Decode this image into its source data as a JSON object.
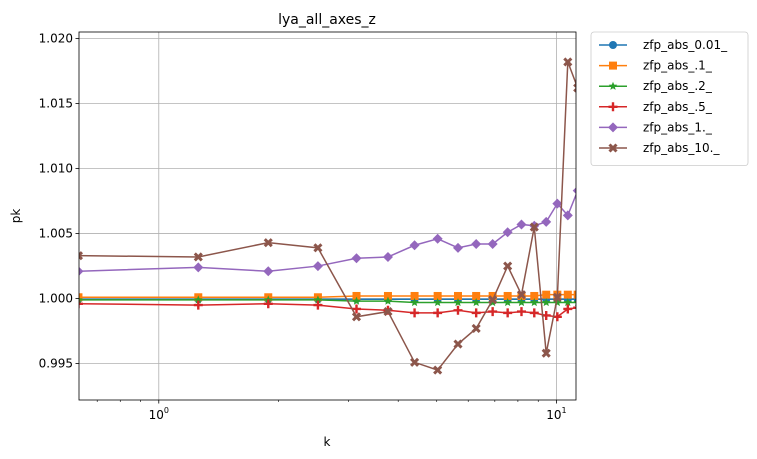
{
  "chart_data": {
    "type": "line",
    "title": "lya_all_axes_z",
    "xlabel": "k",
    "ylabel": "pk",
    "xscale": "log",
    "xlim": [
      0.63,
      11.2
    ],
    "ylim": [
      0.9922,
      1.0205
    ],
    "grid": true,
    "legend_position": "outside-upper-right",
    "x_major_ticks": [
      {
        "value": 1,
        "label": "10^0"
      },
      {
        "value": 10,
        "label": "10^1"
      }
    ],
    "y_ticks": [
      {
        "value": 0.995,
        "label": "0.995"
      },
      {
        "value": 1.0,
        "label": "1.000"
      },
      {
        "value": 1.005,
        "label": "1.005"
      },
      {
        "value": 1.01,
        "label": "1.010"
      },
      {
        "value": 1.015,
        "label": "1.015"
      },
      {
        "value": 1.02,
        "label": "1.020"
      }
    ],
    "x": [
      0.628,
      1.257,
      1.885,
      2.513,
      3.142,
      3.77,
      4.398,
      5.027,
      5.655,
      6.283,
      6.912,
      7.54,
      8.168,
      8.796,
      9.425,
      10.053,
      10.681,
      11.31
    ],
    "series": [
      {
        "name": "zfp_abs_0.01_",
        "color": "#1f77b4",
        "marker": "circle",
        "values": [
          0.99995,
          0.99995,
          0.99995,
          0.99995,
          0.99995,
          0.99995,
          0.99995,
          0.99995,
          0.99995,
          0.99995,
          0.99995,
          0.99995,
          0.99995,
          0.99995,
          0.99995,
          0.99995,
          0.99995,
          0.99995
        ]
      },
      {
        "name": "zfp_abs_.1_",
        "color": "#ff7f0e",
        "marker": "square",
        "values": [
          1.0001,
          1.0001,
          1.0001,
          1.0001,
          1.0002,
          1.0002,
          1.0002,
          1.0002,
          1.0002,
          1.0002,
          1.0002,
          1.0002,
          1.0002,
          1.0002,
          1.0003,
          1.0003,
          1.0003,
          1.0003
        ]
      },
      {
        "name": "zfp_abs_.2_",
        "color": "#2ca02c",
        "marker": "star",
        "values": [
          0.9999,
          0.9999,
          0.9999,
          0.9999,
          0.9998,
          0.9998,
          0.9997,
          0.9997,
          0.9997,
          0.9997,
          0.9997,
          0.9997,
          0.9997,
          0.9997,
          0.9997,
          0.9997,
          0.9997,
          0.9997
        ]
      },
      {
        "name": "zfp_abs_.5_",
        "color": "#d62728",
        "marker": "plus",
        "values": [
          0.9996,
          0.9995,
          0.9996,
          0.9995,
          0.9992,
          0.9991,
          0.9989,
          0.9989,
          0.9991,
          0.9989,
          0.999,
          0.9989,
          0.999,
          0.9989,
          0.9987,
          0.9986,
          0.9992,
          0.9993
        ]
      },
      {
        "name": "zfp_abs_1._",
        "color": "#9467bd",
        "marker": "diamond",
        "values": [
          1.0021,
          1.0024,
          1.0021,
          1.0025,
          1.0031,
          1.0032,
          1.0041,
          1.0046,
          1.0039,
          1.0042,
          1.0042,
          1.0051,
          1.0057,
          1.0056,
          1.0059,
          1.0073,
          1.0064,
          1.0083
        ]
      },
      {
        "name": "zfp_abs_10._",
        "color": "#8c564b",
        "marker": "x",
        "values": [
          1.0033,
          1.0032,
          1.0043,
          1.0039,
          0.9986,
          0.999,
          0.9951,
          0.9945,
          0.9965,
          0.9977,
          0.9999,
          1.0025,
          1.0003,
          1.0055,
          0.9958,
          1.0001,
          1.0182,
          1.0162
        ]
      }
    ]
  }
}
